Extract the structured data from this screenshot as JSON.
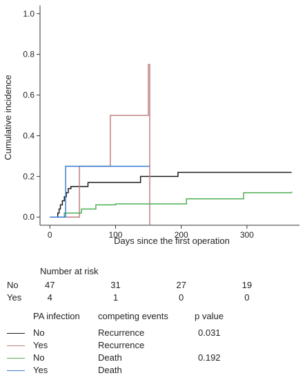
{
  "chart_data": {
    "type": "line",
    "step": true,
    "title": "",
    "xlabel": "Days since the first operation",
    "ylabel": "Cumulative incidence",
    "xlim": [
      -15,
      380
    ],
    "ylim": [
      -0.04,
      1.04
    ],
    "xticks": [
      0,
      100,
      200,
      300
    ],
    "yticks": [
      0.0,
      0.2,
      0.4,
      0.6,
      0.8,
      1.0
    ],
    "ytick_labels": [
      "0.0",
      "0.2",
      "0.4",
      "0.6",
      "0.8",
      "1.0"
    ],
    "grid": false,
    "series": [
      {
        "color": "#1a1a1a",
        "x": [
          0,
          12,
          14,
          16,
          19,
          22,
          25,
          28,
          32,
          37,
          58,
          138,
          195,
          368
        ],
        "y": [
          0,
          0.02,
          0.04,
          0.06,
          0.08,
          0.1,
          0.12,
          0.14,
          0.15,
          0.15,
          0.17,
          0.2,
          0.22,
          0.22
        ]
      },
      {
        "color": "#c08080",
        "x": [
          0,
          45,
          92,
          150,
          152
        ],
        "y": [
          0,
          0.25,
          0.5,
          0.75,
          -0.04
        ]
      },
      {
        "color": "#4caf50",
        "x": [
          0,
          22,
          30,
          48,
          70,
          100,
          208,
          295,
          368
        ],
        "y": [
          0,
          0.02,
          0.02,
          0.04,
          0.06,
          0.065,
          0.09,
          0.12,
          0.125
        ]
      },
      {
        "color": "#3a7bd5",
        "x": [
          0,
          24,
          152
        ],
        "y": [
          0,
          0.25,
          0.25
        ]
      }
    ]
  },
  "risk_table": {
    "title": "Number at risk",
    "rows": [
      {
        "label": "No",
        "values": [
          "47",
          "31",
          "27",
          "19"
        ]
      },
      {
        "label": "Yes",
        "values": [
          "4",
          "1",
          "0",
          "0"
        ]
      }
    ]
  },
  "legend_table": {
    "headers": [
      "PA infection",
      "competing events",
      "p value"
    ],
    "rows": [
      {
        "color": "#1a1a1a",
        "pa": "No",
        "event": "Recurrence",
        "p": "0.031"
      },
      {
        "color": "#c08080",
        "pa": "Yes",
        "event": "Recurrence",
        "p": ""
      },
      {
        "color": "#4caf50",
        "pa": "No",
        "event": "Death",
        "p": "0.192"
      },
      {
        "color": "#3a7bd5",
        "pa": "Yes",
        "event": "Death",
        "p": ""
      }
    ]
  }
}
